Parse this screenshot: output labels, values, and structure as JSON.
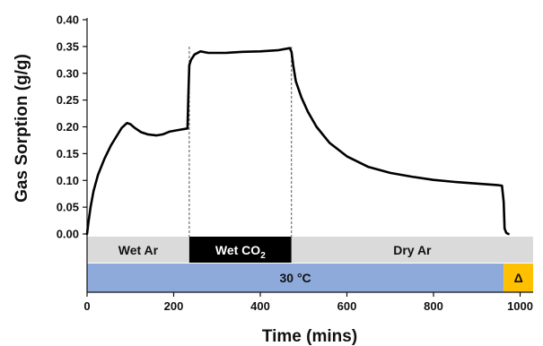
{
  "chart_data": {
    "type": "line",
    "xlabel": "Time (mins)",
    "ylabel": "Gas Sorption (g/g)",
    "xlim": [
      0,
      1030
    ],
    "ylim": [
      0.0,
      0.4
    ],
    "x_ticks": [
      "0",
      "200",
      "400",
      "600",
      "800",
      "1000"
    ],
    "y_ticks": [
      "0.00",
      "0.05",
      "0.10",
      "0.15",
      "0.20",
      "0.25",
      "0.30",
      "0.35",
      "0.40"
    ],
    "grid": false,
    "series": [
      {
        "color": "#000000",
        "points": [
          [
            0,
            0.0
          ],
          [
            3,
            0.02
          ],
          [
            8,
            0.05
          ],
          [
            15,
            0.08
          ],
          [
            25,
            0.11
          ],
          [
            40,
            0.14
          ],
          [
            55,
            0.165
          ],
          [
            70,
            0.185
          ],
          [
            80,
            0.198
          ],
          [
            92,
            0.207
          ],
          [
            100,
            0.205
          ],
          [
            110,
            0.198
          ],
          [
            125,
            0.19
          ],
          [
            140,
            0.186
          ],
          [
            160,
            0.184
          ],
          [
            175,
            0.186
          ],
          [
            190,
            0.191
          ],
          [
            210,
            0.194
          ],
          [
            232,
            0.197
          ],
          [
            234,
            0.26
          ],
          [
            236,
            0.315
          ],
          [
            240,
            0.325
          ],
          [
            248,
            0.335
          ],
          [
            262,
            0.341
          ],
          [
            280,
            0.338
          ],
          [
            320,
            0.338
          ],
          [
            360,
            0.34
          ],
          [
            400,
            0.341
          ],
          [
            440,
            0.343
          ],
          [
            468,
            0.347
          ],
          [
            472,
            0.34
          ],
          [
            476,
            0.315
          ],
          [
            482,
            0.285
          ],
          [
            495,
            0.255
          ],
          [
            510,
            0.228
          ],
          [
            530,
            0.2
          ],
          [
            560,
            0.17
          ],
          [
            600,
            0.145
          ],
          [
            650,
            0.125
          ],
          [
            700,
            0.114
          ],
          [
            750,
            0.107
          ],
          [
            800,
            0.101
          ],
          [
            850,
            0.097
          ],
          [
            900,
            0.094
          ],
          [
            950,
            0.091
          ],
          [
            958,
            0.09
          ],
          [
            962,
            0.06
          ],
          [
            964,
            0.01
          ],
          [
            968,
            0.002
          ],
          [
            973,
            0.0
          ]
        ]
      }
    ],
    "atmosphere_bands": [
      {
        "label": "Wet Ar",
        "x_start": 0,
        "x_end": 236,
        "fill": "#dadada",
        "text_color": "#111111"
      },
      {
        "label_main": "Wet CO",
        "label_sub": "2",
        "x_start": 236,
        "x_end": 472,
        "fill": "#000000",
        "text_color": "#ffffff"
      },
      {
        "label": "Dry Ar",
        "x_start": 472,
        "x_end": 1030,
        "fill": "#dadada",
        "text_color": "#111111"
      }
    ],
    "temperature_bands": [
      {
        "label": "30 °C",
        "x_start": 0,
        "x_end": 962,
        "fill": "#8eaadb",
        "text_color": "#111111"
      },
      {
        "label": "Δ",
        "x_start": 962,
        "x_end": 1030,
        "fill": "#ffc000",
        "text_color": "#111111"
      }
    ],
    "transition_lines_x": [
      236,
      472
    ]
  }
}
